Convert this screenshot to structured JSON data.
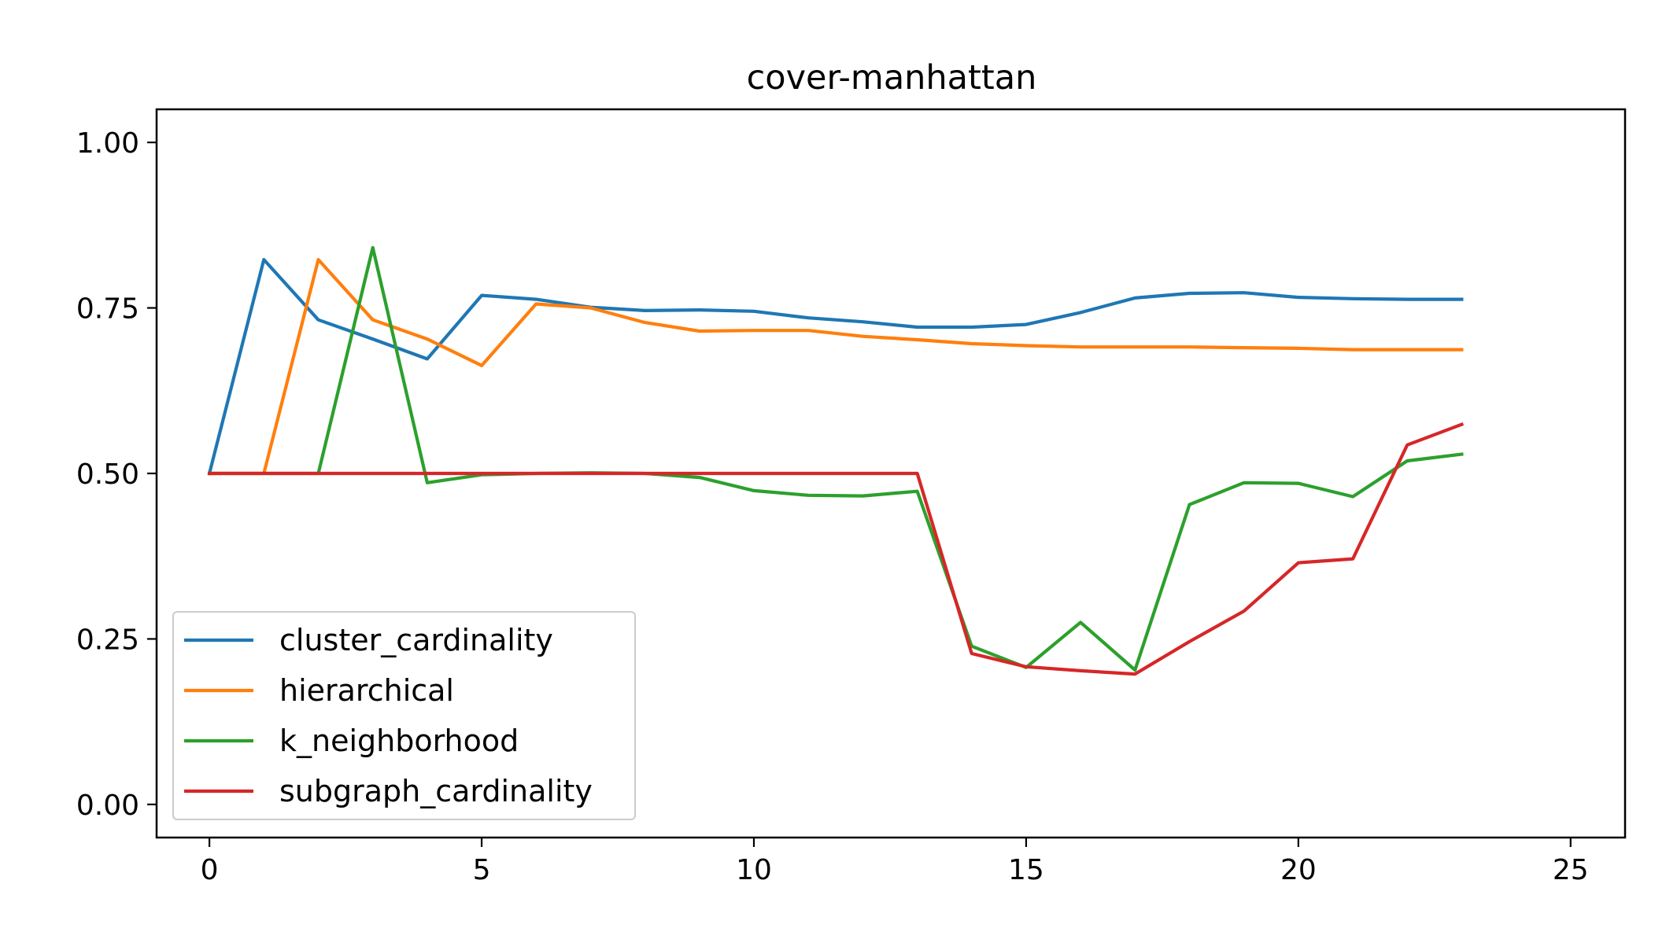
{
  "chart_data": {
    "type": "line",
    "title": "cover-manhattan",
    "xlabel": "",
    "ylabel": "",
    "xlim": [
      -0.97,
      26.0
    ],
    "ylim": [
      -0.05,
      1.05
    ],
    "xticks": [
      0,
      5,
      10,
      15,
      20,
      25
    ],
    "yticks": [
      0.0,
      0.25,
      0.5,
      0.75,
      1.0
    ],
    "xtick_labels": [
      "0",
      "5",
      "10",
      "15",
      "20",
      "25"
    ],
    "ytick_labels": [
      "0.00",
      "0.25",
      "0.50",
      "0.75",
      "1.00"
    ],
    "grid": false,
    "legend_position": "lower-left",
    "x": [
      0,
      1,
      2,
      3,
      4,
      5,
      6,
      7,
      8,
      9,
      10,
      11,
      12,
      13,
      14,
      15,
      16,
      17,
      18,
      19,
      20,
      21,
      22,
      23
    ],
    "series": [
      {
        "name": "cluster_cardinality",
        "color": "#1f77b4",
        "values": [
          0.5,
          0.823,
          0.732,
          0.703,
          0.673,
          0.769,
          0.763,
          0.751,
          0.746,
          0.747,
          0.745,
          0.735,
          0.729,
          0.721,
          0.721,
          0.725,
          0.743,
          0.765,
          0.772,
          0.773,
          0.766,
          0.764,
          0.763,
          0.763
        ]
      },
      {
        "name": "hierarchical",
        "color": "#ff7f0e",
        "values": [
          0.5,
          0.5,
          0.823,
          0.732,
          0.703,
          0.663,
          0.756,
          0.75,
          0.728,
          0.715,
          0.716,
          0.716,
          0.707,
          0.702,
          0.696,
          0.693,
          0.691,
          0.691,
          0.691,
          0.69,
          0.689,
          0.687,
          0.687,
          0.687
        ]
      },
      {
        "name": "k_neighborhood",
        "color": "#2ca02c",
        "values": [
          0.5,
          0.5,
          0.5,
          0.841,
          0.486,
          0.498,
          0.5,
          0.501,
          0.5,
          0.494,
          0.474,
          0.467,
          0.466,
          0.473,
          0.239,
          0.207,
          0.275,
          0.203,
          0.453,
          0.486,
          0.485,
          0.465,
          0.519,
          0.529
        ]
      },
      {
        "name": "subgraph_cardinality",
        "color": "#d62728",
        "values": [
          0.5,
          0.5,
          0.5,
          0.5,
          0.5,
          0.5,
          0.5,
          0.5,
          0.5,
          0.5,
          0.5,
          0.5,
          0.5,
          0.5,
          0.228,
          0.208,
          0.202,
          0.197,
          0.246,
          0.292,
          0.365,
          0.371,
          0.543,
          0.574
        ]
      }
    ]
  }
}
